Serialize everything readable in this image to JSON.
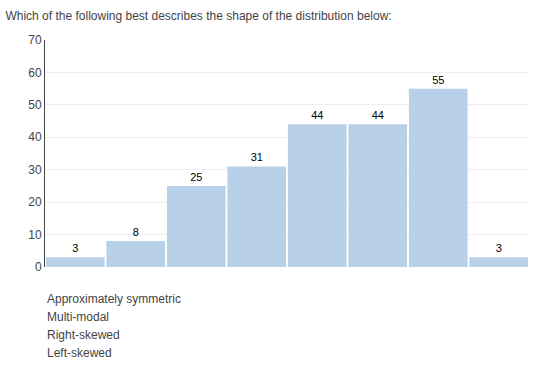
{
  "chart_data": {
    "type": "bar",
    "title": "Which of the following best describes the shape of the distribution below:",
    "categories": [
      null,
      null,
      null,
      null,
      null,
      null,
      null,
      null
    ],
    "values": [
      3,
      8,
      25,
      31,
      44,
      44,
      55,
      3
    ],
    "color": "#b8d0e8",
    "ylim": [
      0,
      70
    ],
    "yticks": [
      0,
      10,
      20,
      30,
      40,
      50,
      60,
      70
    ],
    "grid": true,
    "data_labels": true,
    "tick_labels": "y",
    "annotations": [
      "Approximately symmetric",
      "Multi-modal",
      "Right-skewed",
      "Left-skewed"
    ]
  }
}
